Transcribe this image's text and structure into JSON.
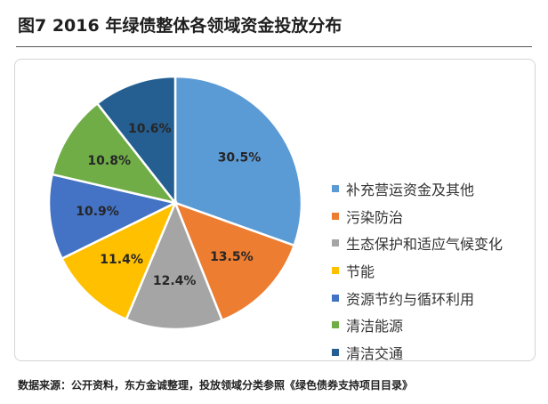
{
  "title": "图7  2016 年绿债整体各领域资金投放分布",
  "source": "数据来源：公开资料，东方金诚整理，投放领域分类参照《绿色债券支持项目目录》",
  "chart_data": {
    "type": "pie",
    "title": "",
    "legend_position": "right",
    "categories": [
      "补充营运资金及其他",
      "污染防治",
      "生态保护和适应气候变化",
      "节能",
      "资源节约与循环利用",
      "清洁能源",
      "清洁交通"
    ],
    "values": [
      30.5,
      13.5,
      12.4,
      11.4,
      10.9,
      10.8,
      10.6
    ],
    "labels": [
      "30.5%",
      "13.5%",
      "12.4%",
      "11.4%",
      "10.9%",
      "10.8%",
      "10.6%"
    ],
    "colors": [
      "#5B9BD5",
      "#ED7D31",
      "#A5A5A5",
      "#FFC000",
      "#4472C4",
      "#70AD47",
      "#255E91"
    ]
  }
}
